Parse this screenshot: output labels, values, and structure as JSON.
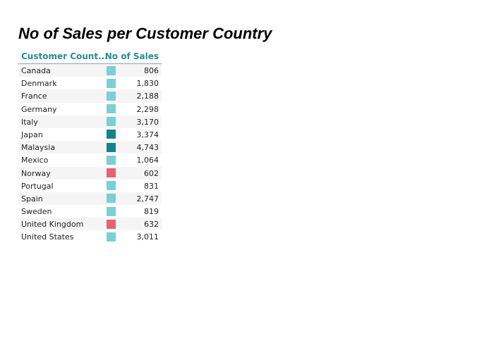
{
  "title": "No of Sales per Customer Country",
  "chart_data": {
    "type": "table",
    "title": "No of Sales per Customer Country",
    "columns": [
      "Customer Count...",
      "No of Sales"
    ],
    "rows": [
      {
        "country": "Canada",
        "sales": 806,
        "sales_label": "806",
        "color": "#78d0d8"
      },
      {
        "country": "Denmark",
        "sales": 1830,
        "sales_label": "1,830",
        "color": "#78d0d8"
      },
      {
        "country": "France",
        "sales": 2188,
        "sales_label": "2,188",
        "color": "#78d0d8"
      },
      {
        "country": "Germany",
        "sales": 2298,
        "sales_label": "2,298",
        "color": "#78d0d8"
      },
      {
        "country": "Italy",
        "sales": 3170,
        "sales_label": "3,170",
        "color": "#78d0d8"
      },
      {
        "country": "Japan",
        "sales": 3374,
        "sales_label": "3,374",
        "color": "#14838b"
      },
      {
        "country": "Malaysia",
        "sales": 4743,
        "sales_label": "4,743",
        "color": "#14838b"
      },
      {
        "country": "Mexico",
        "sales": 1064,
        "sales_label": "1,064",
        "color": "#78d0d8"
      },
      {
        "country": "Norway",
        "sales": 602,
        "sales_label": "602",
        "color": "#e86171"
      },
      {
        "country": "Portugal",
        "sales": 831,
        "sales_label": "831",
        "color": "#78d0d8"
      },
      {
        "country": "Spain",
        "sales": 2747,
        "sales_label": "2,747",
        "color": "#78d0d8"
      },
      {
        "country": "Sweden",
        "sales": 819,
        "sales_label": "819",
        "color": "#78d0d8"
      },
      {
        "country": "United Kingdom",
        "sales": 632,
        "sales_label": "632",
        "color": "#e86171"
      },
      {
        "country": "United States",
        "sales": 3011,
        "sales_label": "3,011",
        "color": "#78d0d8"
      }
    ]
  }
}
